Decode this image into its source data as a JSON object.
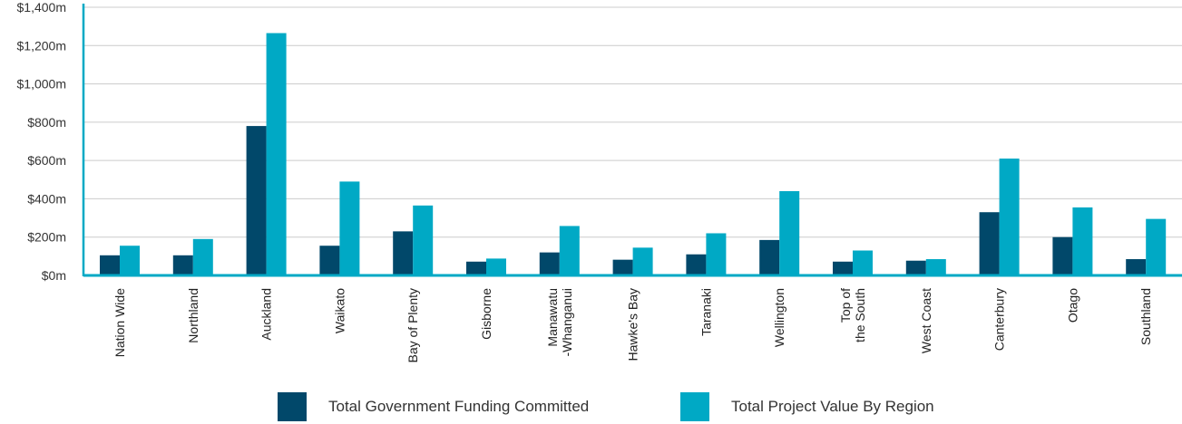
{
  "chart_data": {
    "type": "bar",
    "categories": [
      "Nation Wide",
      "Northland",
      "Auckland",
      "Waikato",
      "Bay of Plenty",
      "Gisborne",
      "Manawatu\n-Whanganui",
      "Hawke's Bay",
      "Taranaki",
      "Wellington",
      "Top of\nthe South",
      "West Coast",
      "Canterbury",
      "Otago",
      "Southland"
    ],
    "series": [
      {
        "name": "Total Government Funding Committed",
        "color": "#01486a",
        "values": [
          105,
          105,
          780,
          155,
          230,
          72,
          120,
          82,
          110,
          185,
          72,
          77,
          330,
          200,
          85
        ]
      },
      {
        "name": "Total Project Value By Region",
        "color": "#00a9c5",
        "values": [
          155,
          190,
          1265,
          490,
          365,
          88,
          258,
          145,
          220,
          440,
          130,
          85,
          610,
          355,
          295
        ]
      }
    ],
    "ylim": [
      0,
      1400
    ],
    "yticks": [
      "$0m",
      "$200m",
      "$400m",
      "$600m",
      "$800m",
      "$1,000m",
      "$1,200m",
      "$1,400m"
    ],
    "ytick_values": [
      0,
      200,
      400,
      600,
      800,
      1000,
      1200,
      1400
    ],
    "xlabel": "",
    "ylabel": "",
    "grid": true,
    "legend_position": "bottom-center",
    "axis_color": "#00a9c5",
    "grid_color": "#cccccc"
  }
}
